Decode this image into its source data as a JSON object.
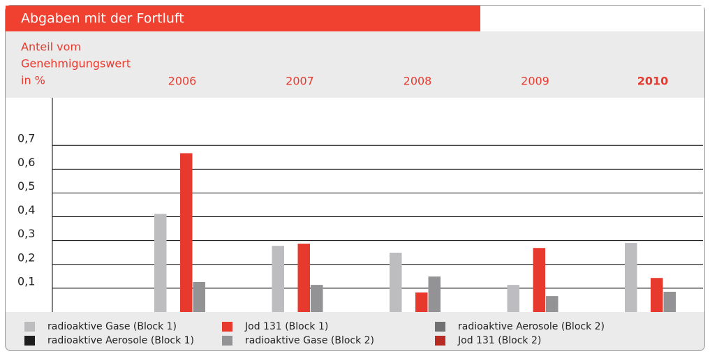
{
  "chart_data": {
    "type": "bar",
    "title": "Abgaben mit der Fortluft",
    "y_label": [
      "Anteil vom",
      "Genehmigungswert",
      "in %"
    ],
    "categories": [
      "2006",
      "2007",
      "2008",
      "2009",
      "2010"
    ],
    "series": [
      {
        "name": "radioaktive Gase (Block 1)",
        "color": "#bdbdbf",
        "values": [
          0.412,
          0.278,
          0.249,
          0.114,
          0.29
        ]
      },
      {
        "name": "radioaktive Aerosole (Block 1)",
        "color": "#1e1e1e",
        "values": [
          null,
          null,
          null,
          null,
          null
        ]
      },
      {
        "name": "Jod 131 (Block 1)",
        "color": "#e8392e",
        "values": [
          0.667,
          0.287,
          0.082,
          0.269,
          0.143
        ]
      },
      {
        "name": "radioaktive Gase (Block 2)",
        "color": "#939395",
        "values": [
          0.126,
          0.114,
          0.149,
          0.067,
          0.085
        ]
      },
      {
        "name": "radioaktive Aerosole (Block 2)",
        "color": "#707072",
        "values": [
          null,
          null,
          null,
          null,
          null
        ]
      },
      {
        "name": "Jod 131 (Block 2)",
        "color": "#b82b25",
        "values": [
          null,
          null,
          null,
          null,
          null
        ]
      }
    ],
    "ylim": [
      0,
      0.9
    ],
    "yticks": [
      {
        "value": 0.1,
        "label": "0,1"
      },
      {
        "value": 0.2,
        "label": "0,2"
      },
      {
        "value": 0.3,
        "label": "0,3"
      },
      {
        "value": 0.4,
        "label": "0,4"
      },
      {
        "value": 0.5,
        "label": "0,5"
      },
      {
        "value": 0.6,
        "label": "0,6"
      },
      {
        "value": 0.7,
        "label": "0,7"
      }
    ],
    "grid": true
  }
}
